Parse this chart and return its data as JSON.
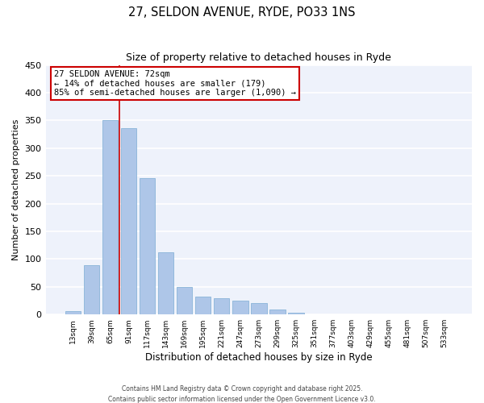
{
  "title": "27, SELDON AVENUE, RYDE, PO33 1NS",
  "subtitle": "Size of property relative to detached houses in Ryde",
  "xlabel": "Distribution of detached houses by size in Ryde",
  "ylabel": "Number of detached properties",
  "bar_color": "#aec6e8",
  "bar_edge_color": "#8ab4d8",
  "background_color": "#eef2fb",
  "grid_color": "white",
  "annotation_border_color": "#cc0000",
  "vline_color": "#cc0000",
  "annotation_text_line1": "27 SELDON AVENUE: 72sqm",
  "annotation_text_line2": "← 14% of detached houses are smaller (179)",
  "annotation_text_line3": "85% of semi-detached houses are larger (1,090) →",
  "categories": [
    "13sqm",
    "39sqm",
    "65sqm",
    "91sqm",
    "117sqm",
    "143sqm",
    "169sqm",
    "195sqm",
    "221sqm",
    "247sqm",
    "273sqm",
    "299sqm",
    "325sqm",
    "351sqm",
    "377sqm",
    "403sqm",
    "429sqm",
    "455sqm",
    "481sqm",
    "507sqm",
    "533sqm"
  ],
  "values": [
    6,
    89,
    350,
    336,
    246,
    112,
    50,
    32,
    30,
    25,
    21,
    9,
    3,
    1,
    1,
    0,
    0,
    0,
    0,
    0,
    0
  ],
  "ylim": [
    0,
    450
  ],
  "yticks": [
    0,
    50,
    100,
    150,
    200,
    250,
    300,
    350,
    400,
    450
  ],
  "footer_line1": "Contains HM Land Registry data © Crown copyright and database right 2025.",
  "footer_line2": "Contains public sector information licensed under the Open Government Licence v3.0.",
  "vline_index": 2.5
}
